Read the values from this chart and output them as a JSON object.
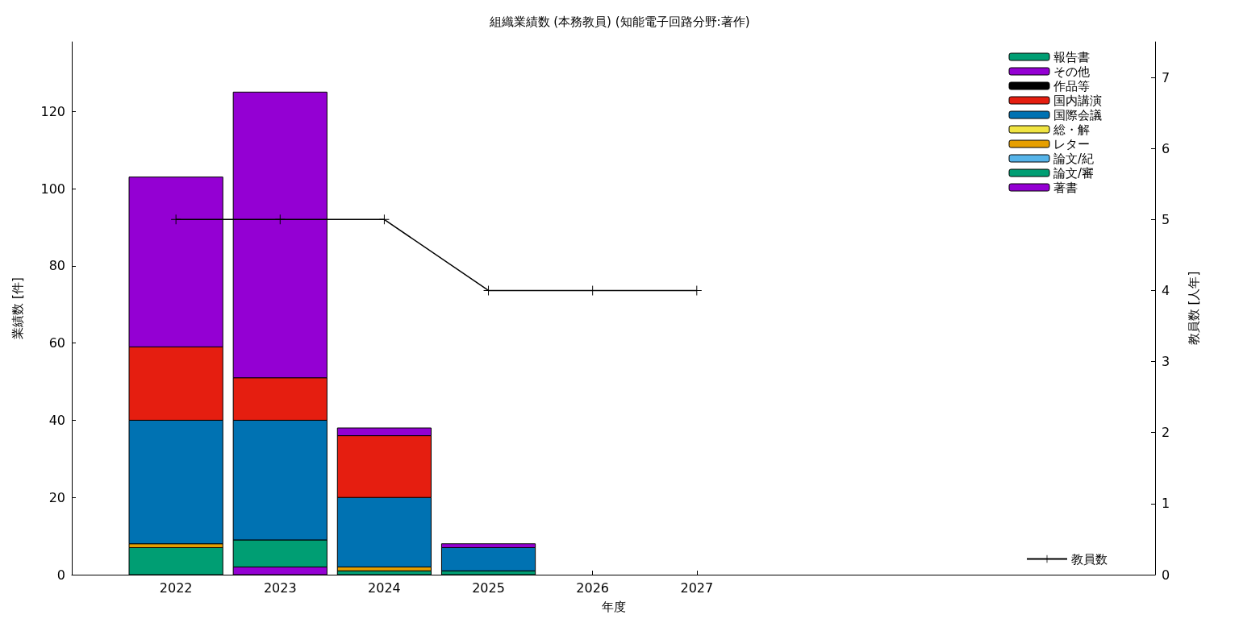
{
  "chart_data": {
    "type": "bar",
    "title": "組織業績数 (本務教員) (知能電子回路分野:著作)",
    "xlabel": "年度",
    "ylabel": "業績数 [件]",
    "y2label": "教員数 [人年]",
    "x": [
      2022,
      2023,
      2024,
      2025,
      2026,
      2027
    ],
    "stacked": true,
    "series": [
      {
        "name": "著書",
        "color": "#9400d3",
        "values": [
          0,
          2,
          0,
          0,
          0,
          0
        ]
      },
      {
        "name": "論文/審",
        "color": "#009e73",
        "values": [
          7,
          7,
          1,
          1,
          0,
          0
        ]
      },
      {
        "name": "論文/紀",
        "color": "#56b4e9",
        "values": [
          0,
          0,
          0,
          0,
          0,
          0
        ]
      },
      {
        "name": "レター",
        "color": "#e69f00",
        "values": [
          1,
          0,
          1,
          0,
          0,
          0
        ]
      },
      {
        "name": "総・解",
        "color": "#f0e442",
        "values": [
          0,
          0,
          0,
          0,
          0,
          0
        ]
      },
      {
        "name": "国際会議",
        "color": "#0072b2",
        "values": [
          32,
          31,
          18,
          6,
          0,
          0
        ]
      },
      {
        "name": "国内講演",
        "color": "#e51e10",
        "values": [
          19,
          11,
          16,
          0,
          0,
          0
        ]
      },
      {
        "name": "作品等",
        "color": "#000000",
        "values": [
          0,
          0,
          0,
          0,
          0,
          0
        ]
      },
      {
        "name": "その他",
        "color": "#9400d3",
        "values": [
          44,
          74,
          2,
          1,
          0,
          0
        ]
      },
      {
        "name": "報告書",
        "color": "#009e73",
        "values": [
          0,
          0,
          0,
          0,
          0,
          0
        ]
      },
      {
        "name": "教員数",
        "type": "line",
        "axis": "y2",
        "color": "#000000",
        "marker": "cross",
        "values": [
          5,
          5,
          5,
          4,
          4,
          4
        ]
      }
    ],
    "xlim": [
      2021,
      2031.4
    ],
    "xticks": [
      2022,
      2023,
      2024,
      2025,
      2026,
      2027
    ],
    "ylim": [
      0,
      138
    ],
    "yticks": [
      0,
      20,
      40,
      60,
      80,
      100,
      120
    ],
    "y2lim": [
      0,
      7.5
    ],
    "y2ticks": [
      0,
      1,
      2,
      3,
      4,
      5,
      6,
      7
    ],
    "grid": false,
    "legend": "top right"
  }
}
